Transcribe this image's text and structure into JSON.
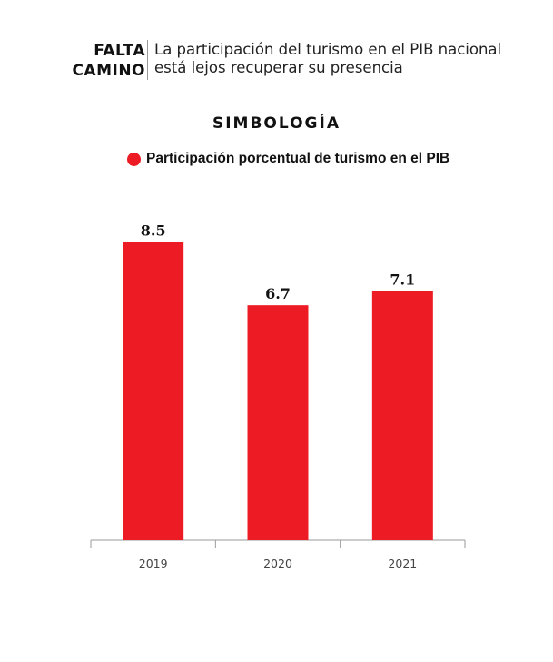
{
  "header": {
    "kicker_lines": [
      "FALTA",
      "CAMINO"
    ],
    "headline_lines": [
      "La participación del turismo en el PIB nacional",
      "está lejos recuperar su presencia"
    ]
  },
  "legend": {
    "title": "SIMBOLOGÍA",
    "entry_label": "Participación porcentual de turismo en el PIB"
  },
  "chart_data": {
    "type": "bar",
    "categories": [
      "2019",
      "2020",
      "2021"
    ],
    "series": [
      {
        "name": "Participación porcentual de turismo en el PIB",
        "values": [
          8.5,
          6.7,
          7.1
        ],
        "value_labels": [
          "8.5",
          "6.7",
          "7.1"
        ],
        "color": "#ed1c24"
      }
    ],
    "ylim": [
      0,
      9.5
    ],
    "grid": false,
    "legend_position": "top"
  }
}
